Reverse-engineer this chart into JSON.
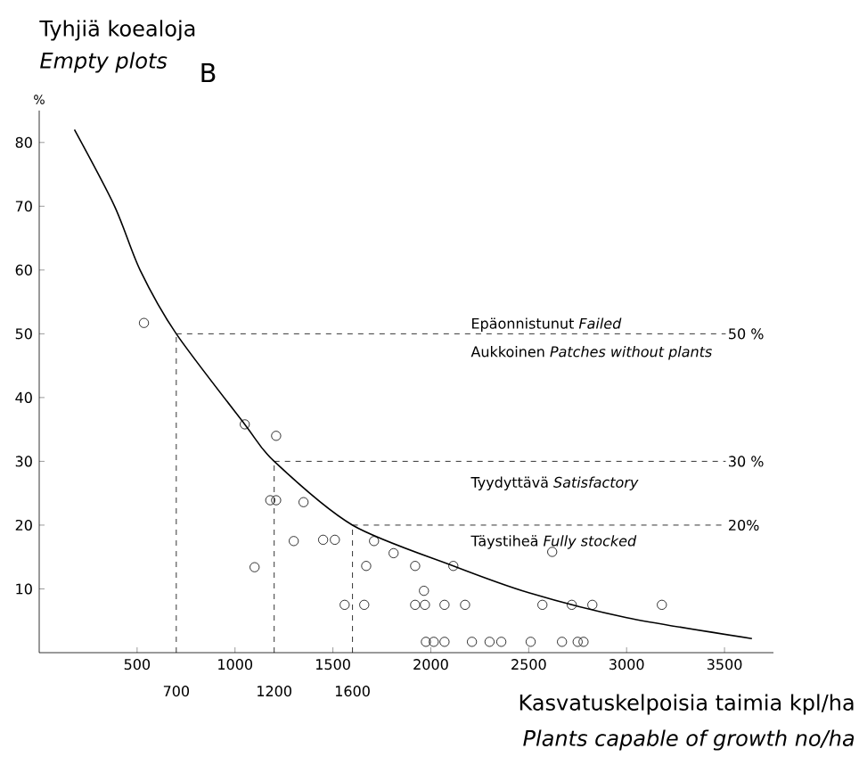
{
  "chart_data": {
    "type": "scatter",
    "title": "Tyhjiä koealoja",
    "subtitle": "Empty plots",
    "xlabel": "Kasvatuskelpoisia taimia kpl/ha",
    "ylabel": "%",
    "xlim": [
      0,
      3750
    ],
    "ylim": [
      0,
      85
    ],
    "xticks": [
      500,
      1000,
      1500,
      2000,
      2500,
      3000,
      3500
    ],
    "yticks": [
      10,
      20,
      30,
      40,
      50,
      60,
      70,
      80
    ],
    "series": [
      {
        "marker": "circle",
        "color": "#000000",
        "x": [
          535,
          1050,
          1210,
          1180,
          1210,
          1350,
          1100,
          1300,
          1450,
          1510,
          1560,
          1660,
          1670,
          1710,
          1810,
          1920,
          1920,
          1970,
          1965,
          1975,
          2015,
          2070,
          2070,
          2175,
          2115,
          2570,
          2620,
          2720,
          2825,
          3180,
          2210,
          2300,
          2360,
          2510,
          2670,
          2750,
          2780
        ],
        "values": [
          51.7,
          35.8,
          34,
          23.9,
          23.9,
          23.6,
          13.4,
          17.5,
          17.7,
          17.7,
          7.5,
          7.5,
          13.6,
          17.5,
          15.6,
          13.6,
          7.5,
          7.5,
          9.7,
          1.7,
          1.7,
          1.7,
          7.5,
          7.5,
          13.6,
          7.5,
          15.8,
          7.5,
          7.5,
          7.5,
          1.7,
          1.7,
          1.7,
          1.7,
          1.7,
          1.7,
          1.7
        ]
      },
      {
        "type": "line",
        "marker": "none",
        "color": "#000000",
        "x": [
          180,
          385,
          515,
          700,
          1050,
          1200,
          1600,
          2115,
          2500,
          3000,
          3640
        ],
        "values": [
          82,
          70,
          60,
          50,
          35.8,
          30,
          20,
          13.6,
          9.4,
          5.5,
          2.2
        ]
      }
    ],
    "ref_lines": [
      {
        "axis": "x",
        "value": 700,
        "label": "700",
        "line_style": "dashed"
      },
      {
        "axis": "x",
        "value": 1200,
        "label": "1200",
        "line_style": "dashed"
      },
      {
        "axis": "x",
        "value": 1600,
        "label": "1600",
        "line_style": "dashed"
      },
      {
        "axis": "y",
        "value": 50,
        "label": "50 %",
        "line_style": "dashed"
      },
      {
        "axis": "y",
        "value": 30,
        "label": "30 %",
        "line_style": "dashed"
      },
      {
        "axis": "y",
        "value": 20,
        "label": "20%",
        "line_style": "dashed"
      }
    ],
    "annotations": [
      "B",
      "Epäonnistunut *Failed*",
      "Aukkoinen *Patches without plants*",
      "Tyydyttävä *Satisfactory*",
      "Täystiheä *Fully stocked*",
      "*Plants capable of growth no/ha*"
    ]
  }
}
